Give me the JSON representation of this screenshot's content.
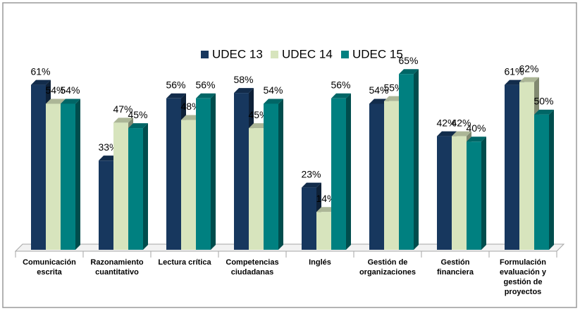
{
  "chart_data": {
    "type": "bar3d",
    "categories": [
      "Comunicación escrita",
      "Razonamiento cuantitativo",
      "Lectura crítica",
      "Competencias ciudadanas",
      "Inglés",
      "Gestión de organizaciones",
      "Gestión financiera",
      "Formulación evaluación y gestión de proyectos"
    ],
    "series": [
      {
        "name": "UDEC 13",
        "color": "#17375e",
        "values": [
          61,
          33,
          56,
          58,
          23,
          54,
          42,
          61
        ],
        "value_labels": [
          "61%",
          "33%",
          "56%",
          "58%",
          "23%",
          "54%",
          "42%",
          "61%"
        ]
      },
      {
        "name": "UDEC 14",
        "color": "#d7e4bd",
        "values": [
          54,
          47,
          48,
          45,
          14,
          55,
          42,
          62
        ],
        "value_labels": [
          "54%",
          "47%",
          "48%",
          "45%",
          "14%",
          "55%",
          "42%",
          "62%"
        ]
      },
      {
        "name": "UDEC 15",
        "color": "#008080",
        "values": [
          54,
          45,
          56,
          54,
          56,
          65,
          40,
          50
        ],
        "value_labels": [
          "54%",
          "45%",
          "56%",
          "54%",
          "56%",
          "65%",
          "40%",
          "50%"
        ]
      }
    ],
    "ylim": [
      0,
      70
    ],
    "legend": "top"
  }
}
